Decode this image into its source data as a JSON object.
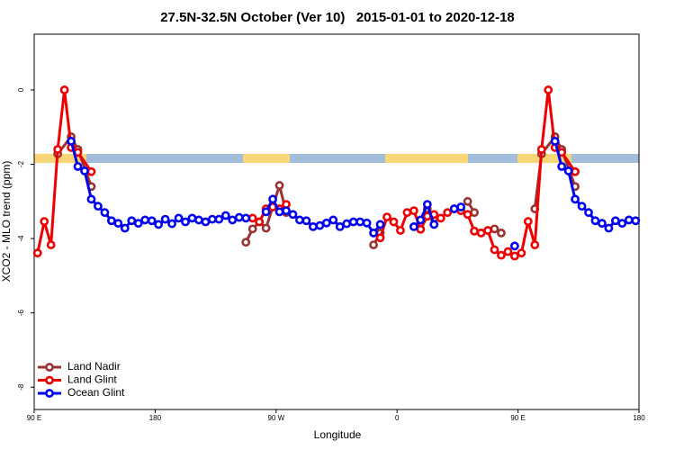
{
  "chart_data": {
    "type": "line",
    "title": "27.5N-32.5N October (Ver 10)   2015-01-01 to 2020-12-18",
    "x_label": "Longitude",
    "y_label": "XCO2 - MLO trend (ppm)",
    "xlim": [
      90,
      540
    ],
    "xticks": [
      {
        "value": 90,
        "label": "90 E"
      },
      180,
      {
        "value": 270,
        "label": "90 W"
      },
      {
        "value": 360,
        "label": "0"
      },
      {
        "value": 450,
        "label": "90 E"
      },
      {
        "value": 540,
        "label": "180"
      }
    ],
    "ylim": [
      -8.6,
      1.5
    ],
    "yticks": [
      0,
      -2,
      -4,
      -6,
      -8
    ],
    "legend": "bottom-left",
    "series": [
      {
        "name": "Land Nadir",
        "color": "#993333",
        "x": [
          107.5,
          117.5,
          122.5,
          132.5,
          137.5,
          247.5,
          252.5,
          257.5,
          262.5,
          272.5,
          277.5,
          282.5,
          342.5,
          347.5,
          352.5,
          382.5,
          387.5,
          392.5,
          412.5,
          417.5,
          422.5,
          432.5,
          437.5,
          442.5,
          462.5,
          467.5,
          477.5,
          482.5,
          492.5
        ],
        "values": [
          -1.72,
          -1.26,
          -1.6,
          -2.6,
          null,
          -4.1,
          -3.74,
          -3.55,
          -3.72,
          -2.57,
          -3.3,
          null,
          -4.17,
          -3.85,
          null,
          -3.2,
          -3.45,
          null,
          -3.0,
          -3.3,
          null,
          -3.74,
          -3.85,
          null,
          -3.2,
          -1.72,
          -1.26,
          -1.6,
          -2.6
        ]
      },
      {
        "name": "Land Glint",
        "color": "#ee0000",
        "x": [
          92.5,
          97.5,
          102.5,
          107.5,
          112.5,
          117.5,
          122.5,
          132.5,
          137.5,
          252.5,
          257.5,
          262.5,
          267.5,
          272.5,
          277.5,
          282.5,
          347.5,
          352.5,
          357.5,
          362.5,
          367.5,
          372.5,
          377.5,
          382.5,
          387.5,
          392.5,
          397.5,
          402.5,
          407.5,
          412.5,
          417.5,
          422.5,
          427.5,
          432.5,
          437.5,
          442.5,
          447.5,
          452.5,
          457.5,
          462.5,
          467.5,
          472.5,
          477.5,
          482.5,
          492.5
        ],
        "values": [
          -4.39,
          -3.54,
          -4.17,
          -1.6,
          0,
          -1.55,
          -1.68,
          -2.2,
          null,
          -3.45,
          -3.55,
          -3.2,
          -3.15,
          -3.2,
          -3.08,
          null,
          -3.98,
          -3.42,
          -3.55,
          -3.78,
          -3.3,
          -3.25,
          -3.75,
          -3.4,
          -3.35,
          -3.45,
          -3.3,
          -3.2,
          -3.25,
          -3.35,
          -3.8,
          -3.85,
          -3.78,
          -4.3,
          -4.45,
          -4.35,
          -4.47,
          -4.39,
          -3.54,
          -4.17,
          -1.6,
          0,
          -1.55,
          -1.68,
          -2.2
        ]
      },
      {
        "name": "Ocean Glint",
        "color": "#0000ee",
        "x": [
          117.5,
          122.5,
          127.5,
          132.5,
          137.5,
          142.5,
          147.5,
          152.5,
          157.5,
          162.5,
          167.5,
          172.5,
          177.5,
          182.5,
          187.5,
          192.5,
          197.5,
          202.5,
          207.5,
          212.5,
          217.5,
          222.5,
          227.5,
          232.5,
          237.5,
          242.5,
          247.5,
          252.5,
          257.5,
          262.5,
          267.5,
          272.5,
          277.5,
          282.5,
          287.5,
          292.5,
          297.5,
          302.5,
          307.5,
          312.5,
          317.5,
          322.5,
          327.5,
          332.5,
          337.5,
          342.5,
          347.5,
          352.5,
          357.5,
          362.5,
          367.5,
          372.5,
          377.5,
          382.5,
          387.5,
          392.5,
          397.5,
          402.5,
          407.5,
          412.5,
          417.5,
          422.5,
          427.5,
          432.5,
          437.5,
          442.5,
          447.5,
          452.5,
          457.5,
          462.5,
          467.5,
          472.5,
          477.5,
          482.5,
          487.5,
          492.5,
          497.5,
          502.5,
          507.5,
          512.5,
          517.5,
          522.5,
          527.5,
          532.5,
          537.5
        ],
        "values": [
          -1.38,
          -2.06,
          -2.18,
          -2.94,
          -3.13,
          -3.3,
          -3.52,
          -3.59,
          -3.72,
          -3.52,
          -3.59,
          -3.5,
          -3.52,
          -3.62,
          -3.48,
          -3.6,
          -3.45,
          -3.55,
          -3.45,
          -3.5,
          -3.55,
          -3.48,
          -3.48,
          -3.38,
          -3.5,
          -3.43,
          -3.45,
          null,
          null,
          -3.28,
          -2.94,
          -3.28,
          -3.25,
          -3.35,
          -3.5,
          -3.52,
          -3.68,
          -3.65,
          -3.58,
          -3.5,
          -3.68,
          -3.6,
          -3.55,
          -3.55,
          -3.58,
          -3.85,
          -3.62,
          null,
          null,
          null,
          null,
          -3.68,
          -3.5,
          -3.08,
          -3.62,
          null,
          null,
          -3.2,
          -3.15,
          null,
          null,
          null,
          null,
          null,
          null,
          null,
          -4.2,
          null,
          null,
          null,
          null,
          null,
          -1.38,
          -2.06,
          -2.18,
          -2.94,
          -3.13,
          -3.3,
          -3.52,
          -3.59,
          -3.72,
          -3.52,
          -3.59,
          -3.5,
          -3.52
        ]
      }
    ]
  }
}
